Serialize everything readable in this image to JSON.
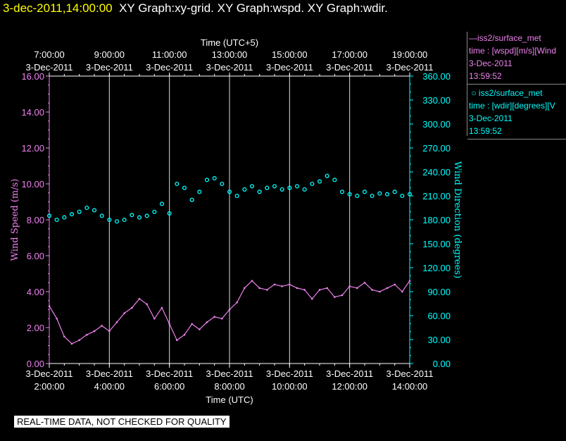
{
  "title": {
    "timestamp": "3-dec-2011,14:00:00",
    "graphs": "XY Graph:xy-grid.  XY Graph:wspd.  XY Graph:wdir."
  },
  "legend": {
    "series1": {
      "name": "iss2/surface_met",
      "line1": "time : [wspd][m/s][Wind",
      "date": "3-Dec-2011",
      "time": "13:59:52",
      "color": "#ee82ee"
    },
    "series2": {
      "name": "iss2/surface_met",
      "line1": "time : [wdir][degrees][V",
      "date": "3-Dec-2011",
      "time": "13:59:52",
      "color": "#00ffff"
    }
  },
  "disclaimer": "REAL-TIME DATA, NOT CHECKED FOR QUALITY",
  "chart_data": {
    "type": "line",
    "top_axis_label": "Time (UTC+5)",
    "bottom_axis_label": "Time (UTC)",
    "left_axis_label": "Wind Speed (m/s)",
    "right_axis_label": "Wind Direction (degrees)",
    "x_range_hours_utc": [
      2,
      14
    ],
    "bottom_ticks": [
      {
        "date": "3-Dec-2011",
        "time": "2:00:00"
      },
      {
        "date": "3-Dec-2011",
        "time": "4:00:00"
      },
      {
        "date": "3-Dec-2011",
        "time": "6:00:00"
      },
      {
        "date": "3-Dec-2011",
        "time": "8:00:00"
      },
      {
        "date": "3-Dec-2011",
        "time": "10:00:00"
      },
      {
        "date": "3-Dec-2011",
        "time": "12:00:00"
      },
      {
        "date": "3-Dec-2011",
        "time": "14:00:00"
      }
    ],
    "top_ticks": [
      {
        "time": "7:00:00",
        "date": "3-Dec-2011"
      },
      {
        "time": "9:00:00",
        "date": "3-Dec-2011"
      },
      {
        "time": "11:00:00",
        "date": "3-Dec-2011"
      },
      {
        "time": "13:00:00",
        "date": "3-Dec-2011"
      },
      {
        "time": "15:00:00",
        "date": "3-Dec-2011"
      },
      {
        "time": "17:00:00",
        "date": "3-Dec-2011"
      },
      {
        "time": "19:00:00",
        "date": "3-Dec-2011"
      }
    ],
    "left_ticks": [
      "0.00",
      "2.00",
      "4.00",
      "6.00",
      "8.00",
      "10.00",
      "12.00",
      "14.00",
      "16.00"
    ],
    "right_ticks": [
      "0.00",
      "30.00",
      "60.00",
      "90.00",
      "120.00",
      "150.00",
      "180.00",
      "210.00",
      "240.00",
      "270.00",
      "300.00",
      "330.00",
      "360.00"
    ],
    "left_range": [
      0,
      16
    ],
    "right_range": [
      0,
      360
    ],
    "vertical_grid": true,
    "series": [
      {
        "name": "wspd",
        "axis": "left",
        "color": "#ee82ee",
        "style": "line",
        "x": [
          2.0,
          2.25,
          2.5,
          2.75,
          3.0,
          3.25,
          3.5,
          3.75,
          4.0,
          4.25,
          4.5,
          4.75,
          5.0,
          5.25,
          5.5,
          5.75,
          6.0,
          6.25,
          6.5,
          6.75,
          7.0,
          7.25,
          7.5,
          7.75,
          8.0,
          8.25,
          8.5,
          8.75,
          9.0,
          9.25,
          9.5,
          9.75,
          10.0,
          10.25,
          10.5,
          10.75,
          11.0,
          11.25,
          11.5,
          11.75,
          12.0,
          12.25,
          12.5,
          12.75,
          13.0,
          13.25,
          13.5,
          13.75,
          14.0
        ],
        "y": [
          3.2,
          2.5,
          1.5,
          1.1,
          1.3,
          1.6,
          1.8,
          2.1,
          1.8,
          2.3,
          2.8,
          3.1,
          3.6,
          3.3,
          2.5,
          3.1,
          2.2,
          1.3,
          1.6,
          2.2,
          1.9,
          2.3,
          2.6,
          2.5,
          3.0,
          3.4,
          4.2,
          4.6,
          4.2,
          4.1,
          4.4,
          4.3,
          4.4,
          4.2,
          4.1,
          3.6,
          4.1,
          4.2,
          3.7,
          3.8,
          4.3,
          4.2,
          4.5,
          4.1,
          4.0,
          4.2,
          4.4,
          4.0,
          4.6
        ]
      },
      {
        "name": "wdir",
        "axis": "right",
        "color": "#00ffff",
        "style": "circles",
        "x": [
          2.0,
          2.25,
          2.5,
          2.75,
          3.0,
          3.25,
          3.5,
          3.75,
          4.0,
          4.25,
          4.5,
          4.75,
          5.0,
          5.25,
          5.5,
          5.75,
          6.0,
          6.25,
          6.5,
          6.75,
          7.0,
          7.25,
          7.5,
          7.75,
          8.0,
          8.25,
          8.5,
          8.75,
          9.0,
          9.25,
          9.5,
          9.75,
          10.0,
          10.25,
          10.5,
          10.75,
          11.0,
          11.25,
          11.5,
          11.75,
          12.0,
          12.25,
          12.5,
          12.75,
          13.0,
          13.25,
          13.5,
          13.75,
          14.0
        ],
        "y": [
          185,
          180,
          183,
          187,
          190,
          195,
          192,
          185,
          180,
          178,
          180,
          186,
          183,
          185,
          190,
          200,
          188,
          225,
          220,
          205,
          215,
          230,
          232,
          225,
          215,
          210,
          218,
          222,
          215,
          220,
          222,
          218,
          220,
          222,
          218,
          225,
          228,
          235,
          230,
          215,
          212,
          210,
          215,
          210,
          213,
          212,
          215,
          210,
          212
        ]
      }
    ]
  }
}
